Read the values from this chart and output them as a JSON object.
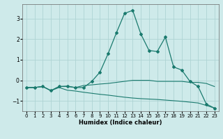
{
  "title": "",
  "xlabel": "Humidex (Indice chaleur)",
  "background_color": "#ceeaea",
  "grid_color": "#aed4d4",
  "line_color": "#1a7a6e",
  "xlim": [
    -0.5,
    23.5
  ],
  "ylim": [
    -1.5,
    3.7
  ],
  "xticks": [
    0,
    1,
    2,
    3,
    4,
    5,
    6,
    7,
    8,
    9,
    10,
    11,
    12,
    13,
    14,
    15,
    16,
    17,
    18,
    19,
    20,
    21,
    22,
    23
  ],
  "yticks": [
    -1,
    0,
    1,
    2,
    3
  ],
  "line1_x": [
    0,
    1,
    2,
    3,
    4,
    5,
    6,
    7,
    8,
    9,
    10,
    11,
    12,
    13,
    14,
    15,
    16,
    17,
    18,
    19,
    20,
    21,
    22,
    23
  ],
  "line1_y": [
    -0.35,
    -0.35,
    -0.3,
    -0.5,
    -0.3,
    -0.3,
    -0.35,
    -0.35,
    -0.05,
    0.4,
    1.3,
    2.3,
    3.25,
    3.4,
    2.25,
    1.45,
    1.4,
    2.1,
    0.65,
    0.5,
    -0.05,
    -0.3,
    -1.15,
    -1.35
  ],
  "line2_x": [
    0,
    1,
    2,
    3,
    4,
    5,
    6,
    7,
    8,
    9,
    10,
    11,
    12,
    13,
    14,
    15,
    16,
    17,
    18,
    19,
    20,
    21,
    22,
    23
  ],
  "line2_y": [
    -0.35,
    -0.35,
    -0.3,
    -0.5,
    -0.3,
    -0.28,
    -0.35,
    -0.25,
    -0.22,
    -0.18,
    -0.15,
    -0.1,
    -0.05,
    0.0,
    0.0,
    0.0,
    -0.05,
    -0.05,
    -0.05,
    -0.05,
    -0.1,
    -0.1,
    -0.15,
    -0.3
  ],
  "line3_x": [
    0,
    1,
    2,
    3,
    4,
    5,
    6,
    7,
    8,
    9,
    10,
    11,
    12,
    13,
    14,
    15,
    16,
    17,
    18,
    19,
    20,
    21,
    22,
    23
  ],
  "line3_y": [
    -0.35,
    -0.35,
    -0.3,
    -0.5,
    -0.35,
    -0.48,
    -0.52,
    -0.58,
    -0.63,
    -0.68,
    -0.72,
    -0.77,
    -0.82,
    -0.86,
    -0.89,
    -0.91,
    -0.93,
    -0.96,
    -0.99,
    -1.02,
    -1.06,
    -1.1,
    -1.22,
    -1.35
  ]
}
